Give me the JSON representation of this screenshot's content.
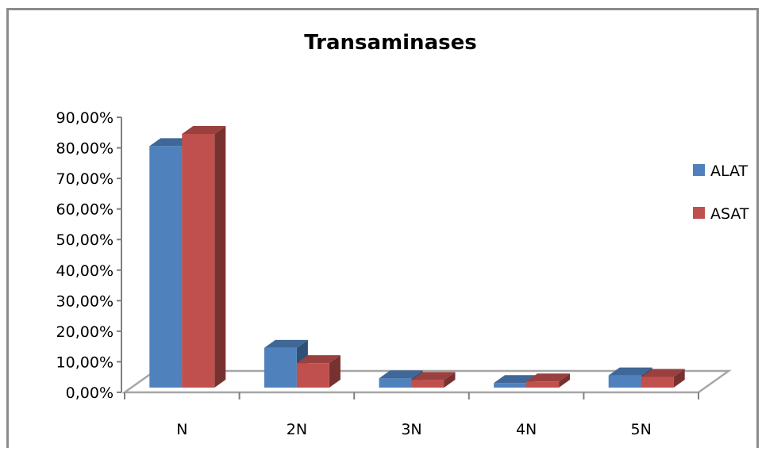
{
  "chart_data": {
    "type": "bar",
    "title": "Transaminases",
    "categories": [
      "N",
      "2N",
      "3N",
      "4N",
      "5N"
    ],
    "series": [
      {
        "name": "ALAT",
        "values": [
          0.79,
          0.13,
          0.03,
          0.015,
          0.04
        ],
        "color": "#4f81bd"
      },
      {
        "name": "ASAT",
        "values": [
          0.83,
          0.08,
          0.025,
          0.02,
          0.035
        ],
        "color": "#c0504d"
      }
    ],
    "y_ticks": [
      "0,00%",
      "10,00%",
      "20,00%",
      "30,00%",
      "40,00%",
      "50,00%",
      "60,00%",
      "70,00%",
      "80,00%",
      "90,00%"
    ],
    "ylim": [
      0,
      0.9
    ],
    "legend_position": "right",
    "grid": false,
    "style": "3d-clustered-column"
  }
}
